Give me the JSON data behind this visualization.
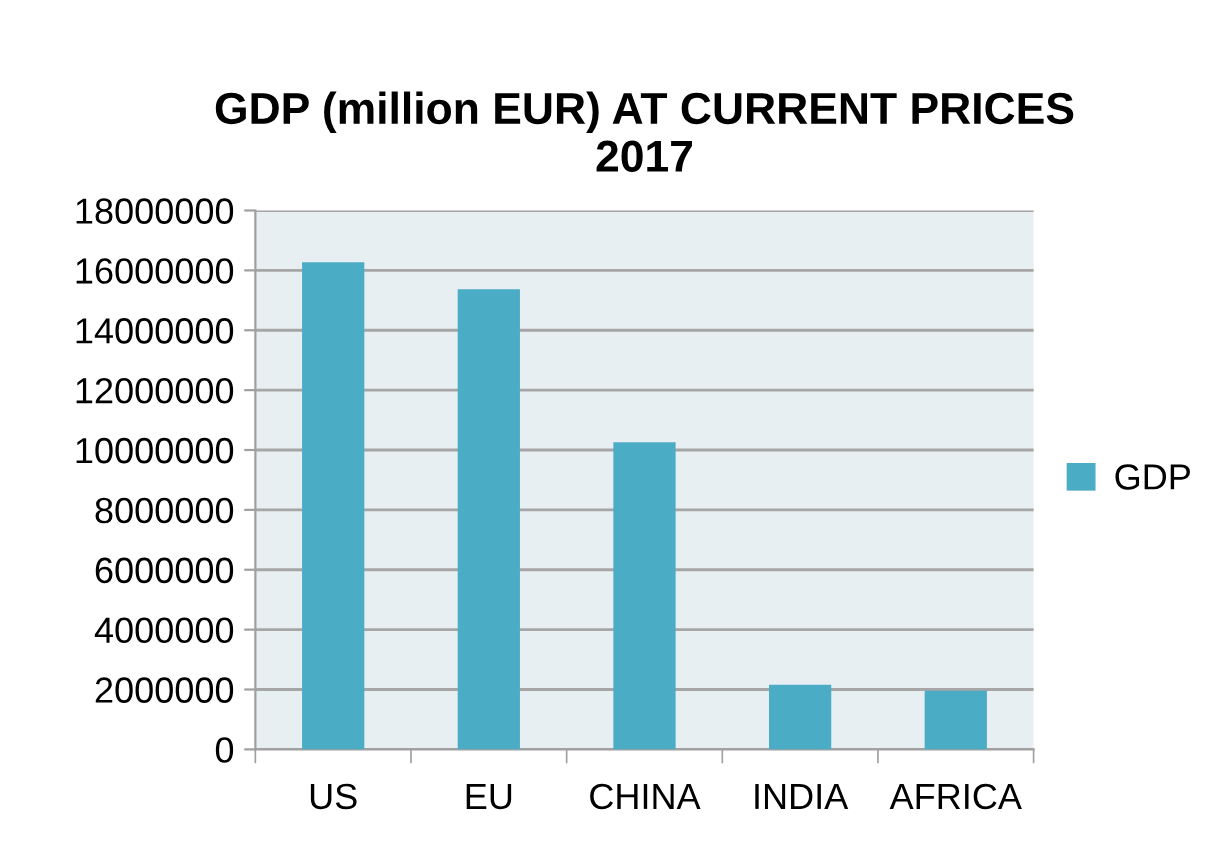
{
  "chart_data": {
    "type": "bar",
    "title": "GDP (million EUR) AT CURRENT PRICES\n2017",
    "categories": [
      "US",
      "EU",
      "CHINA",
      "INDIA",
      "AFRICA"
    ],
    "series": [
      {
        "name": "GDP",
        "color": "#4bacc6",
        "values": [
          16270000,
          15370000,
          10260000,
          2160000,
          1960000
        ]
      }
    ],
    "ylim": [
      0,
      18000000
    ],
    "yticks": [
      0,
      2000000,
      4000000,
      6000000,
      8000000,
      10000000,
      12000000,
      14000000,
      16000000,
      18000000
    ],
    "grid": "y",
    "legend": "right"
  }
}
